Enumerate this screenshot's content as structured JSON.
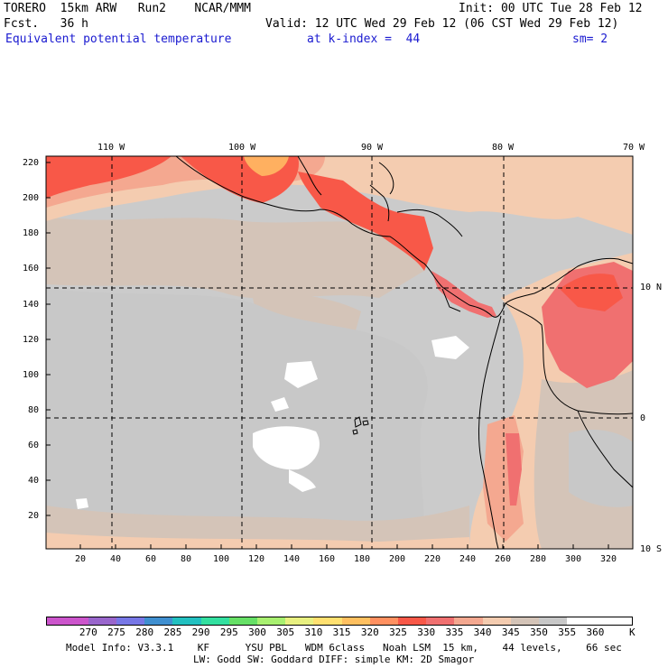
{
  "header": {
    "line1_left": "TORERO  15km ARW   Run2    NCAR/MMM",
    "line1_right": "Init: 00 UTC Tue 28 Feb 12",
    "line2_left": "Fcst.   36 h",
    "line2_right": "Valid: 12 UTC Wed 29 Feb 12 (06 CST Wed 29 Feb 12)",
    "field": "Equivalent potential temperature",
    "level": "at k-index =  44",
    "smoothing": "sm= 2"
  },
  "map": {
    "top_lon_labels": [
      "110 W",
      "100 W",
      "90 W",
      "80 W",
      "70 W"
    ],
    "right_lat_labels": [
      "10 N",
      "0",
      "10 S"
    ],
    "left_grid_labels": [
      "220",
      "200",
      "180",
      "160",
      "140",
      "120",
      "100",
      "80",
      "60",
      "40",
      "20"
    ],
    "bottom_grid_labels": [
      "20",
      "40",
      "60",
      "80",
      "100",
      "120",
      "140",
      "160",
      "180",
      "200",
      "220",
      "240",
      "260",
      "280",
      "300",
      "320"
    ]
  },
  "colorbar": {
    "bins": [
      {
        "label": "270",
        "color": "#cc55cc"
      },
      {
        "label": "275",
        "color": "#9966cc"
      },
      {
        "label": "280",
        "color": "#7777e6"
      },
      {
        "label": "285",
        "color": "#3f8fd0"
      },
      {
        "label": "290",
        "color": "#22c0c0"
      },
      {
        "label": "295",
        "color": "#33e0a0"
      },
      {
        "label": "300",
        "color": "#66e066"
      },
      {
        "label": "305",
        "color": "#a8f070"
      },
      {
        "label": "310",
        "color": "#e8f080"
      },
      {
        "label": "315",
        "color": "#ffe070"
      },
      {
        "label": "320",
        "color": "#ffc060"
      },
      {
        "label": "325",
        "color": "#ff9060"
      },
      {
        "label": "330",
        "color": "#f85848"
      },
      {
        "label": "335",
        "color": "#f07070"
      },
      {
        "label": "340",
        "color": "#f4a890"
      },
      {
        "label": "345",
        "color": "#f4ccb0"
      },
      {
        "label": "350",
        "color": "#d4c4b8"
      },
      {
        "label": "355",
        "color": "#c8c8c8"
      },
      {
        "label": "360",
        "color": "#ffffff"
      }
    ],
    "unit": "K"
  },
  "footer": {
    "line1": "Model Info: V3.3.1    KF      YSU PBL   WDM 6class   Noah LSM  15 km,    44 levels,    66 sec",
    "line2": "LW: Godd SW: Goddard DIFF: simple KM: 2D Smagor"
  }
}
